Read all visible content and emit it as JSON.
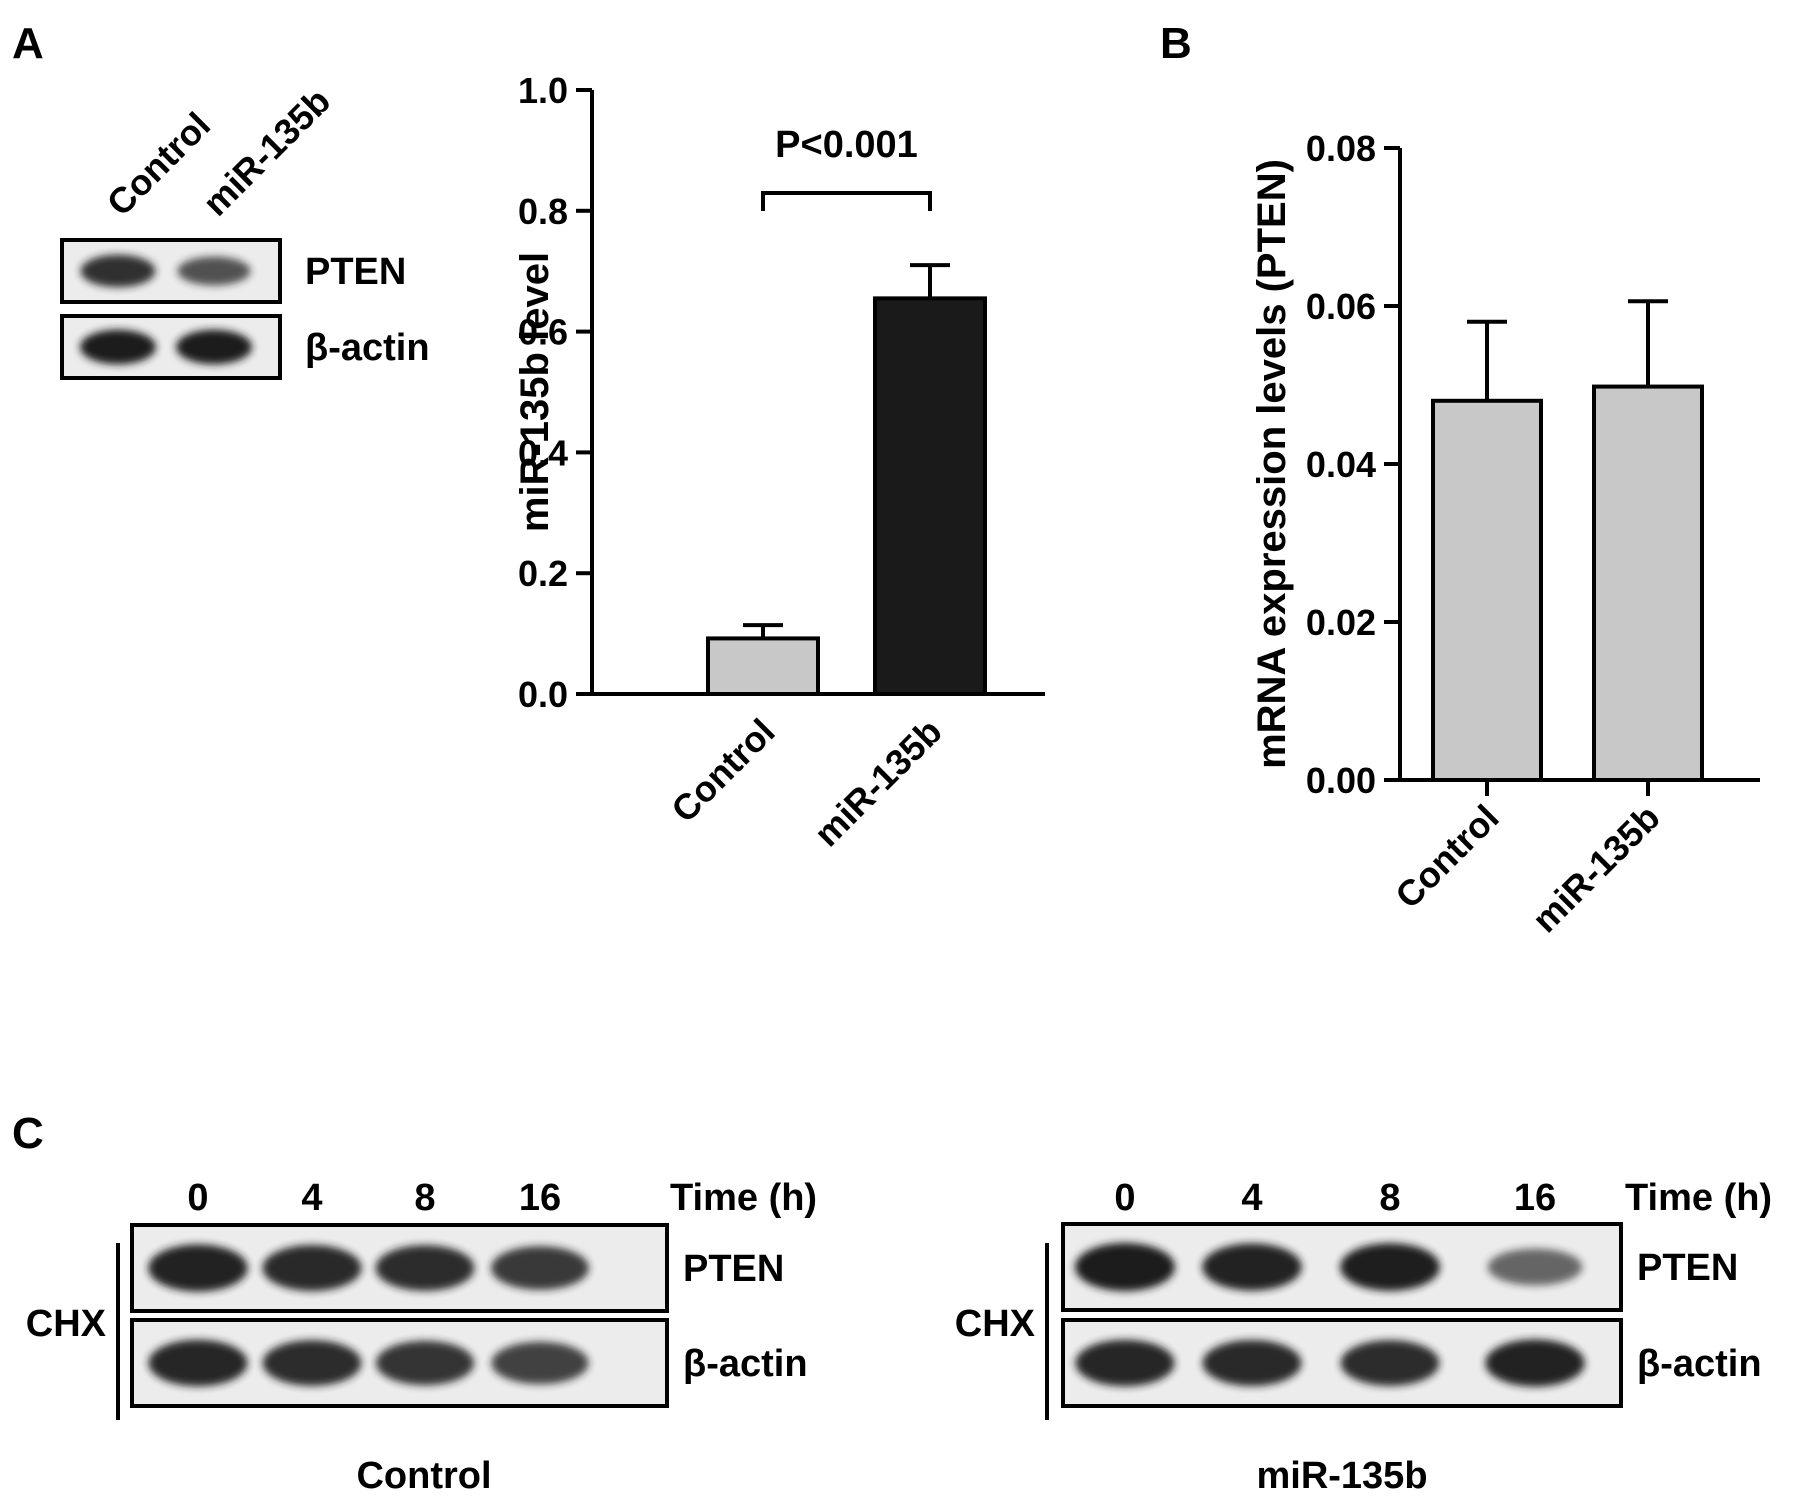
{
  "panels": {
    "a": "A",
    "b": "B",
    "c": "C"
  },
  "colors": {
    "control_bar": "#c8c8c8",
    "mir_bar": "#1a1a1a",
    "axis": "#000000",
    "blot_bg": "#ececec",
    "band": "#1c1c1c"
  },
  "blot_a": {
    "lanes": [
      "Control",
      "miR-135b"
    ],
    "rows": [
      "PTEN",
      "β-actin"
    ],
    "band_intensity": {
      "PTEN": [
        0.85,
        0.6
      ],
      "β-actin": [
        1.0,
        1.0
      ]
    }
  },
  "chart_data": [
    {
      "type": "bar",
      "categories": [
        "Control",
        "miR-135b"
      ],
      "values": [
        0.092,
        0.655
      ],
      "errors": [
        0.022,
        0.055
      ],
      "ylabel": "miR-135b level",
      "ylim": [
        0,
        1.0
      ],
      "yticks": [
        "0.0",
        "0.2",
        "0.4",
        "0.6",
        "0.8",
        "1.0"
      ],
      "annotation": "P<0.001"
    },
    {
      "type": "bar",
      "categories": [
        "Control",
        "miR-135b"
      ],
      "values": [
        0.048,
        0.0498
      ],
      "errors": [
        0.01,
        0.0108
      ],
      "ylabel": "mRNA expression levels (PTEN)",
      "ylim": [
        0,
        0.08
      ],
      "yticks": [
        "0.00",
        "0.02",
        "0.04",
        "0.06",
        "0.08"
      ]
    }
  ],
  "blot_c": {
    "time_label": "Time (h)",
    "times": [
      "0",
      "4",
      "8",
      "16"
    ],
    "treatment": "CHX",
    "rows": [
      "PTEN",
      "β-actin"
    ],
    "groups": [
      {
        "name": "Control",
        "band_intensity": {
          "PTEN": [
            0.95,
            0.9,
            0.88,
            0.78
          ],
          "β-actin": [
            0.92,
            0.88,
            0.82,
            0.72
          ]
        }
      },
      {
        "name": "miR-135b",
        "band_intensity": {
          "PTEN": [
            1.0,
            0.95,
            0.98,
            0.45
          ],
          "β-actin": [
            0.92,
            0.9,
            0.88,
            0.95
          ]
        }
      }
    ]
  }
}
